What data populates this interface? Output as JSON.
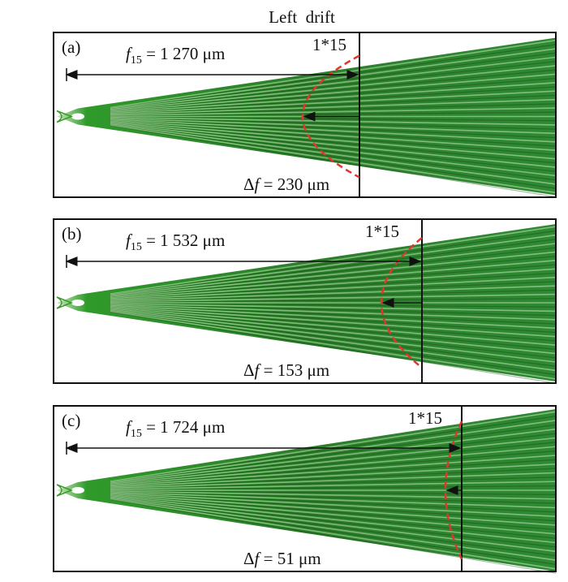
{
  "header": {
    "title": "Left  drift"
  },
  "panels": [
    {
      "label": "(a)",
      "focal": {
        "symbol": "f",
        "subscript": "15",
        "text": " = 1 270 μm"
      },
      "order": "1*15",
      "shift": {
        "prefix": "Δ",
        "symbol": "f",
        "text": " = 230 μm"
      }
    },
    {
      "label": "(b)",
      "focal": {
        "symbol": "f",
        "subscript": "15",
        "text": " = 1 532 μm"
      },
      "order": "1*15",
      "shift": {
        "prefix": "Δ",
        "symbol": "f",
        "text": " = 153 μm"
      }
    },
    {
      "label": "(c)",
      "focal": {
        "symbol": "f",
        "subscript": "15",
        "text": " = 1 724 μm"
      },
      "order": "1*15",
      "shift": {
        "prefix": "Δ",
        "symbol": "f",
        "text": " = 51 μm"
      }
    }
  ]
}
